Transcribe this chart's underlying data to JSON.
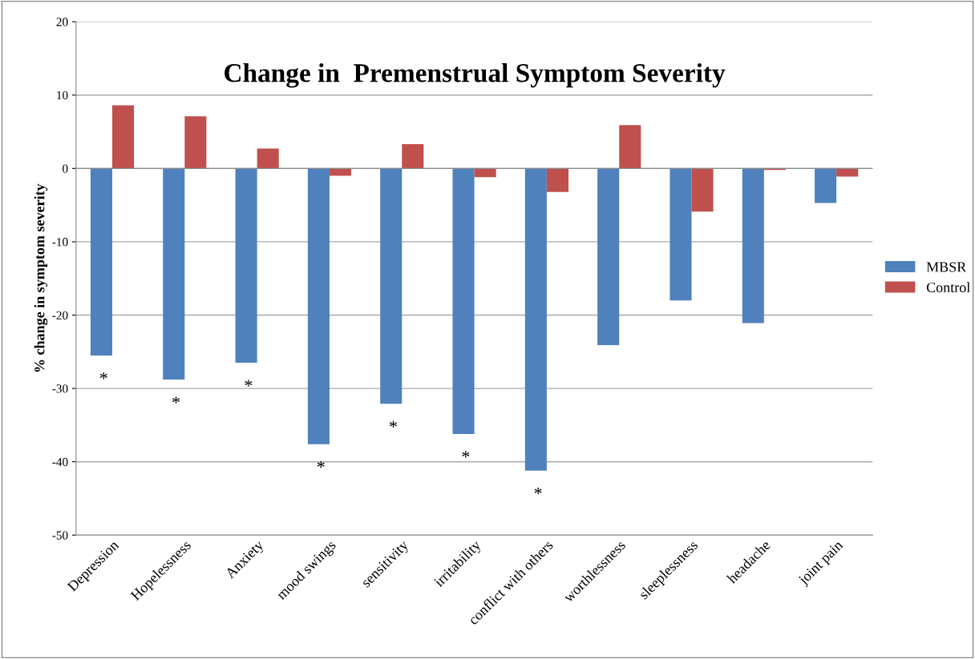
{
  "chart_data": {
    "type": "bar",
    "title": "Change in  Premenstrual Symptom Severity",
    "ylabel": "% change in symptom severity",
    "categories": [
      "Depression",
      "Hopelessness",
      "Anxiety",
      "mood swings",
      "sensitivity",
      "irritability",
      "conflict with others",
      "worthlessness",
      "sleeplessness",
      "headache",
      "joint pain"
    ],
    "series": [
      {
        "name": "MBSR",
        "color": "#4f81bd",
        "values": [
          -25.5,
          -28.8,
          -26.5,
          -37.6,
          -32.1,
          -36.2,
          -41.2,
          -24.1,
          -18.0,
          -21.1,
          -4.7
        ]
      },
      {
        "name": "Control",
        "color": "#c0504d",
        "values": [
          8.6,
          7.1,
          2.7,
          -1.0,
          3.3,
          -1.2,
          -3.2,
          5.9,
          -5.9,
          -0.2,
          -1.1
        ]
      }
    ],
    "ylim": [
      -50,
      20
    ],
    "yticks": [
      -50,
      -40,
      -30,
      -20,
      -10,
      0,
      10,
      20
    ],
    "grid": "y",
    "legend": "right",
    "annotations": [
      "*",
      "*",
      "*",
      "*",
      "*",
      "*",
      "*"
    ]
  }
}
